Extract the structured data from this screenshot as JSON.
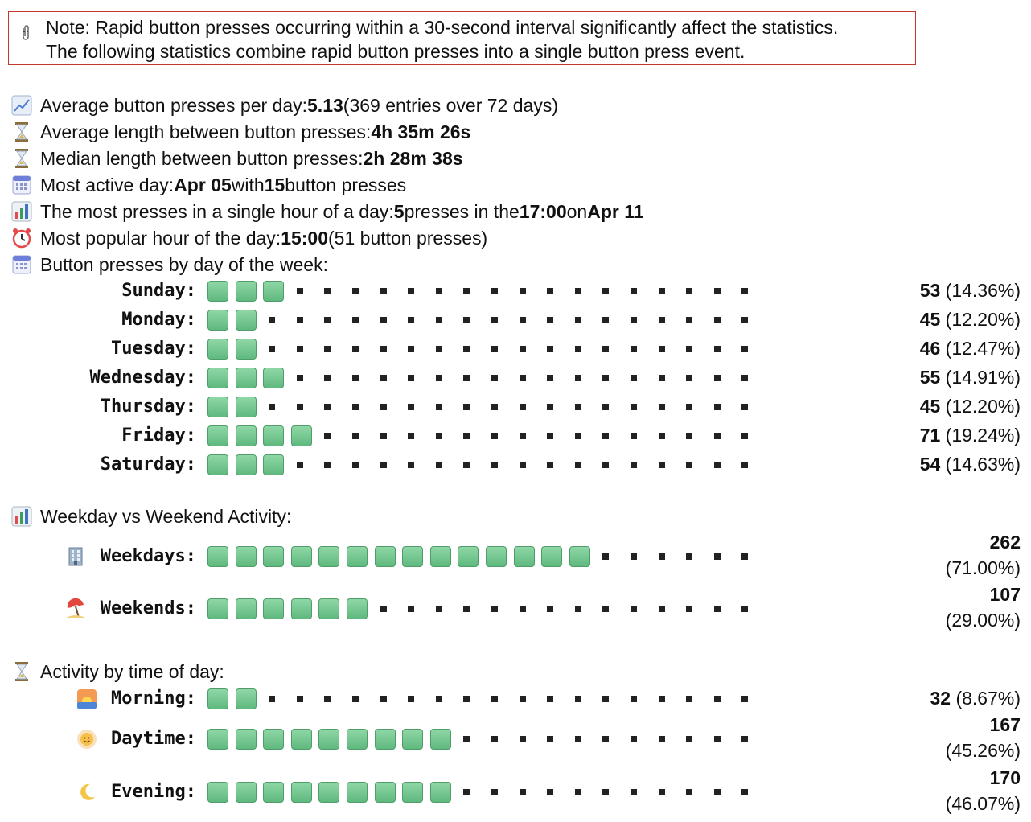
{
  "note": {
    "line1": "Note: Rapid button presses occurring within a 30-second interval significantly affect the statistics.",
    "line2": "The following statistics combine rapid button presses into a single button press event.",
    "icon": "paperclip-icon"
  },
  "stats": {
    "avg_per_day": {
      "label": "Average button presses per day: ",
      "value": "5.13",
      "suffix": " (369 entries over 72 days)",
      "icon": "chart-increasing-icon"
    },
    "avg_length": {
      "label": "Average length between button presses: ",
      "value": "4h 35m 26s",
      "icon": "hourglass-icon"
    },
    "median_length": {
      "label": "Median length between button presses: ",
      "value": "2h 28m 38s",
      "icon": "hourglass-icon"
    },
    "most_active_day": {
      "label": "Most active day: ",
      "day": "Apr 05",
      "mid": " with ",
      "count": "15",
      "suffix": " button presses",
      "icon": "calendar-icon"
    },
    "most_in_hour": {
      "label": "The most presses in a single hour of a day: ",
      "count": "5",
      "mid1": " presses in the ",
      "hour": "17:00",
      "mid2": " on ",
      "day": "Apr 11",
      "icon": "bar-chart-icon"
    },
    "popular_hour": {
      "label": "Most popular hour of the day: ",
      "value": "15:00",
      "suffix": " (51 button presses)",
      "icon": "alarm-clock-icon"
    }
  },
  "weekly": {
    "title": "Button presses by day of the week:",
    "icon": "calendar-icon",
    "days": [
      {
        "label": "Sunday:",
        "count": "53",
        "pct": "(14.36%)",
        "filled": 3
      },
      {
        "label": "Monday:",
        "count": "45",
        "pct": "(12.20%)",
        "filled": 2
      },
      {
        "label": "Tuesday:",
        "count": "46",
        "pct": "(12.47%)",
        "filled": 2
      },
      {
        "label": "Wednesday:",
        "count": "55",
        "pct": "(14.91%)",
        "filled": 3
      },
      {
        "label": "Thursday:",
        "count": "45",
        "pct": "(12.20%)",
        "filled": 2
      },
      {
        "label": "Friday:",
        "count": "71",
        "pct": "(19.24%)",
        "filled": 4
      },
      {
        "label": "Saturday:",
        "count": "54",
        "pct": "(14.63%)",
        "filled": 3
      }
    ]
  },
  "weekend": {
    "title": "Weekday vs Weekend Activity:",
    "icon": "bar-chart-icon",
    "rows": [
      {
        "label": "Weekdays:",
        "count": "262",
        "pct": "(71.00%)",
        "filled": 14,
        "icon": "office-building-icon"
      },
      {
        "label": "Weekends:",
        "count": "107",
        "pct": "(29.00%)",
        "filled": 6,
        "icon": "beach-umbrella-icon"
      }
    ]
  },
  "timeofday": {
    "title": "Activity by time of day:",
    "icon": "hourglass-icon",
    "rows": [
      {
        "label": "Morning:",
        "count": "32",
        "pct": "(8.67%)",
        "filled": 2,
        "icon": "sunrise-icon"
      },
      {
        "label": "Daytime:",
        "count": "167",
        "pct": "(45.26%)",
        "filled": 9,
        "icon": "sun-with-face-icon"
      },
      {
        "label": "Evening:",
        "count": "170",
        "pct": "(46.07%)",
        "filled": 9,
        "icon": "crescent-moon-icon"
      }
    ]
  },
  "bar_total_cells": 20,
  "colors": {
    "note_border": "#c0392b",
    "block": "#6cc48b",
    "text": "#111111"
  }
}
